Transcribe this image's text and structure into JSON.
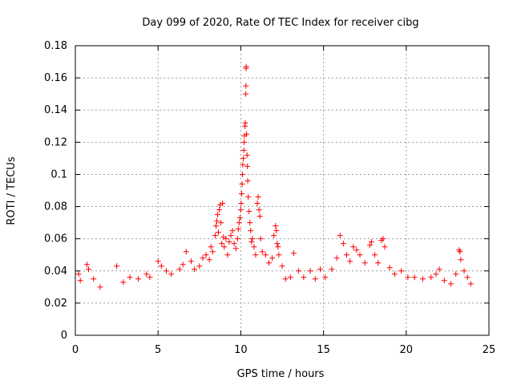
{
  "chart_data": {
    "type": "scatter",
    "title": "Day 099 of 2020, Rate Of TEC Index for receiver cibg",
    "xlabel": "GPS time / hours",
    "ylabel": "ROTI / TECUs",
    "xlim": [
      0,
      25
    ],
    "ylim": [
      0,
      0.18
    ],
    "x_ticks": [
      "0",
      "5",
      "10",
      "15",
      "20",
      "25"
    ],
    "y_ticks": [
      "0",
      "0.02",
      "0.04",
      "0.06",
      "0.08",
      "0.1",
      "0.12",
      "0.14",
      "0.16",
      "0.18"
    ],
    "grid": true,
    "marker": "+",
    "series_color": "#ff0000",
    "series": [
      {
        "points": [
          [
            0.2,
            0.038
          ],
          [
            0.3,
            0.034
          ],
          [
            0.7,
            0.044
          ],
          [
            0.8,
            0.041
          ],
          [
            1.1,
            0.035
          ],
          [
            1.5,
            0.03
          ],
          [
            2.5,
            0.043
          ],
          [
            2.9,
            0.033
          ],
          [
            3.3,
            0.036
          ],
          [
            3.8,
            0.035
          ],
          [
            4.3,
            0.038
          ],
          [
            4.5,
            0.036
          ],
          [
            5.0,
            0.046
          ],
          [
            5.2,
            0.043
          ],
          [
            5.5,
            0.04
          ],
          [
            5.8,
            0.038
          ],
          [
            6.3,
            0.041
          ],
          [
            6.5,
            0.044
          ],
          [
            6.7,
            0.052
          ],
          [
            7.0,
            0.046
          ],
          [
            7.2,
            0.041
          ],
          [
            7.5,
            0.043
          ],
          [
            7.7,
            0.048
          ],
          [
            7.9,
            0.05
          ],
          [
            8.1,
            0.047
          ],
          [
            8.2,
            0.055
          ],
          [
            8.3,
            0.052
          ],
          [
            8.45,
            0.062
          ],
          [
            8.5,
            0.068
          ],
          [
            8.55,
            0.071
          ],
          [
            8.6,
            0.075
          ],
          [
            8.65,
            0.064
          ],
          [
            8.7,
            0.078
          ],
          [
            8.75,
            0.081
          ],
          [
            8.8,
            0.07
          ],
          [
            8.85,
            0.057
          ],
          [
            8.9,
            0.082
          ],
          [
            8.95,
            0.061
          ],
          [
            9.0,
            0.055
          ],
          [
            9.1,
            0.06
          ],
          [
            9.2,
            0.05
          ],
          [
            9.3,
            0.058
          ],
          [
            9.4,
            0.062
          ],
          [
            9.5,
            0.065
          ],
          [
            9.6,
            0.057
          ],
          [
            9.7,
            0.054
          ],
          [
            9.8,
            0.06
          ],
          [
            9.85,
            0.066
          ],
          [
            9.9,
            0.07
          ],
          [
            9.95,
            0.073
          ],
          [
            10.0,
            0.078
          ],
          [
            10.02,
            0.082
          ],
          [
            10.05,
            0.088
          ],
          [
            10.08,
            0.094
          ],
          [
            10.1,
            0.1
          ],
          [
            10.12,
            0.106
          ],
          [
            10.15,
            0.11
          ],
          [
            10.18,
            0.115
          ],
          [
            10.2,
            0.12
          ],
          [
            10.22,
            0.124
          ],
          [
            10.25,
            0.13
          ],
          [
            10.27,
            0.132
          ],
          [
            10.3,
            0.15
          ],
          [
            10.31,
            0.155
          ],
          [
            10.32,
            0.166
          ],
          [
            10.33,
            0.167
          ],
          [
            10.35,
            0.125
          ],
          [
            10.38,
            0.112
          ],
          [
            10.4,
            0.105
          ],
          [
            10.42,
            0.096
          ],
          [
            10.45,
            0.086
          ],
          [
            10.5,
            0.077
          ],
          [
            10.55,
            0.07
          ],
          [
            10.6,
            0.065
          ],
          [
            10.65,
            0.058
          ],
          [
            10.7,
            0.06
          ],
          [
            10.8,
            0.055
          ],
          [
            10.9,
            0.05
          ],
          [
            11.0,
            0.082
          ],
          [
            11.05,
            0.086
          ],
          [
            11.1,
            0.078
          ],
          [
            11.15,
            0.074
          ],
          [
            11.2,
            0.06
          ],
          [
            11.3,
            0.052
          ],
          [
            11.5,
            0.05
          ],
          [
            11.7,
            0.045
          ],
          [
            11.9,
            0.048
          ],
          [
            12.0,
            0.062
          ],
          [
            12.1,
            0.068
          ],
          [
            12.15,
            0.065
          ],
          [
            12.2,
            0.057
          ],
          [
            12.25,
            0.055
          ],
          [
            12.3,
            0.05
          ],
          [
            12.5,
            0.043
          ],
          [
            12.7,
            0.035
          ],
          [
            13.0,
            0.036
          ],
          [
            13.2,
            0.051
          ],
          [
            13.5,
            0.04
          ],
          [
            13.8,
            0.036
          ],
          [
            14.2,
            0.04
          ],
          [
            14.5,
            0.035
          ],
          [
            14.8,
            0.041
          ],
          [
            15.1,
            0.036
          ],
          [
            15.5,
            0.041
          ],
          [
            15.8,
            0.048
          ],
          [
            16.0,
            0.062
          ],
          [
            16.2,
            0.057
          ],
          [
            16.4,
            0.05
          ],
          [
            16.6,
            0.046
          ],
          [
            16.8,
            0.055
          ],
          [
            17.0,
            0.053
          ],
          [
            17.2,
            0.05
          ],
          [
            17.5,
            0.045
          ],
          [
            17.8,
            0.056
          ],
          [
            17.9,
            0.058
          ],
          [
            18.1,
            0.05
          ],
          [
            18.3,
            0.045
          ],
          [
            18.5,
            0.059
          ],
          [
            18.6,
            0.06
          ],
          [
            18.7,
            0.055
          ],
          [
            19.0,
            0.042
          ],
          [
            19.3,
            0.038
          ],
          [
            19.7,
            0.04
          ],
          [
            20.1,
            0.036
          ],
          [
            20.5,
            0.036
          ],
          [
            21.0,
            0.035
          ],
          [
            21.5,
            0.036
          ],
          [
            21.8,
            0.038
          ],
          [
            22.0,
            0.041
          ],
          [
            22.3,
            0.034
          ],
          [
            22.7,
            0.032
          ],
          [
            23.0,
            0.038
          ],
          [
            23.2,
            0.053
          ],
          [
            23.25,
            0.052
          ],
          [
            23.3,
            0.047
          ],
          [
            23.5,
            0.04
          ],
          [
            23.7,
            0.036
          ],
          [
            23.9,
            0.032
          ]
        ]
      }
    ]
  }
}
